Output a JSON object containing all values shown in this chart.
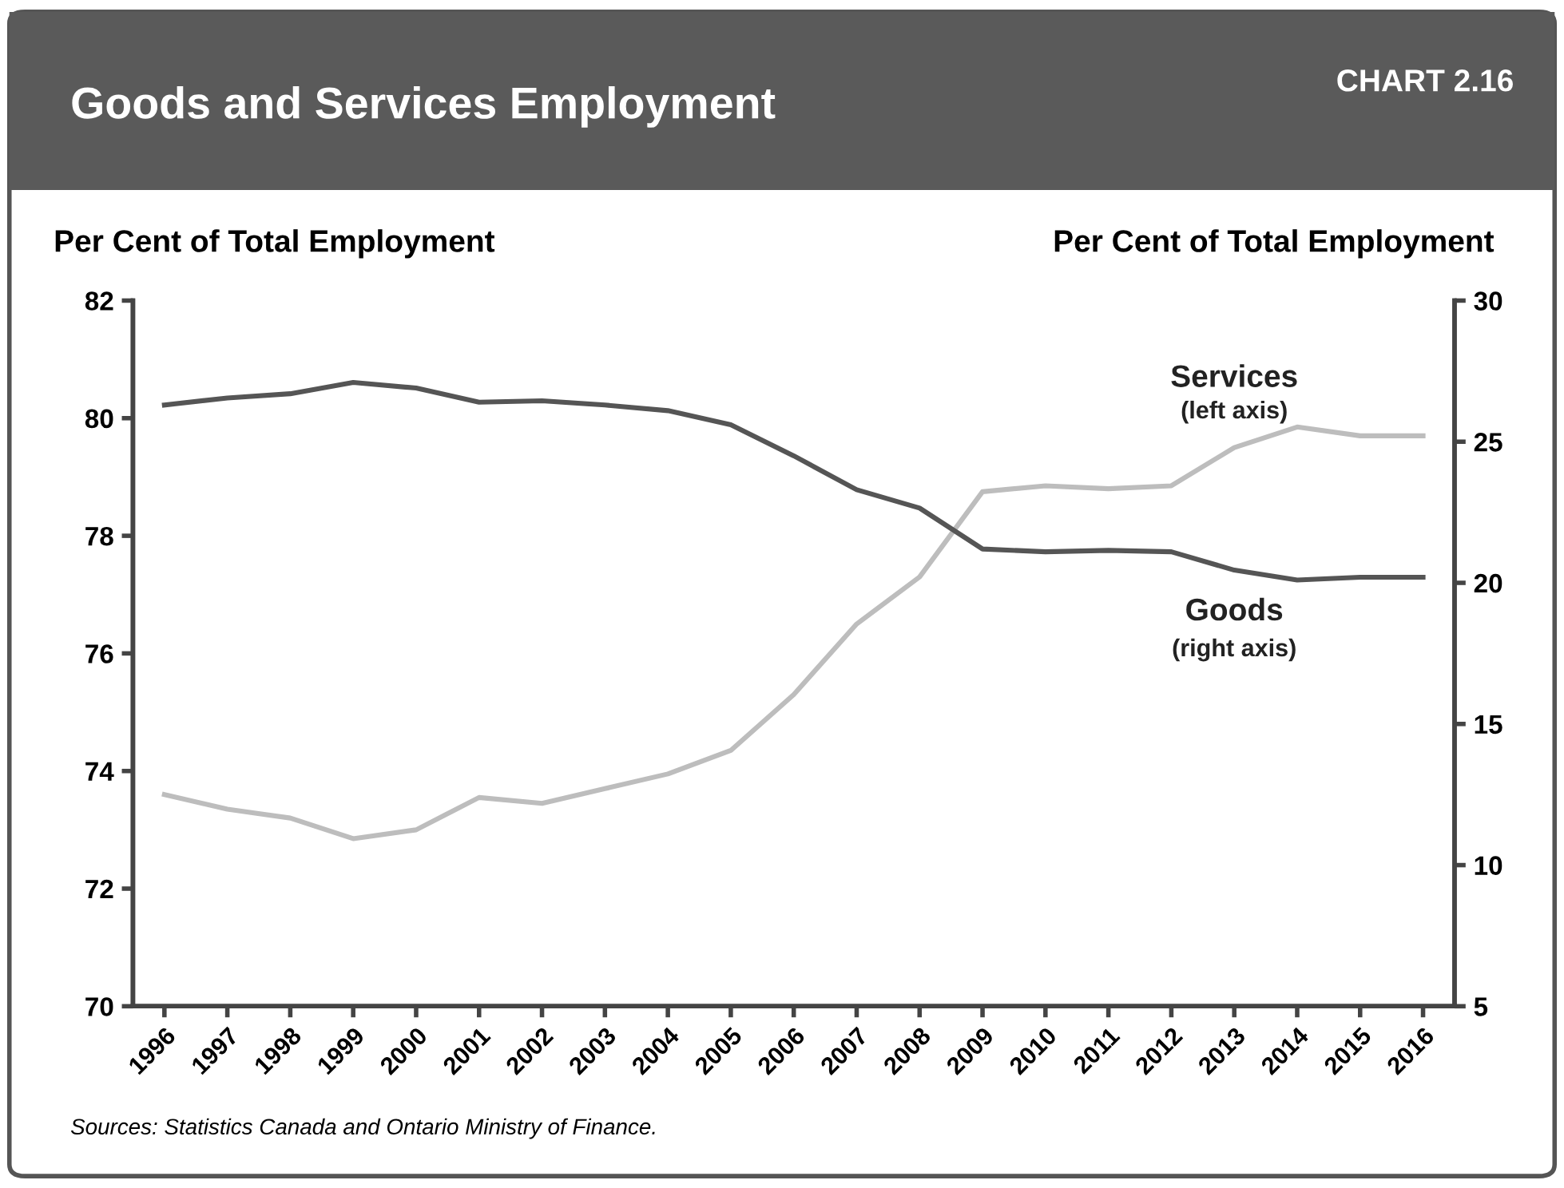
{
  "chart_data": {
    "type": "line",
    "title": "Goods and Services Employment",
    "subtitle": "CHART 2.16",
    "ylabel": "Per Cent of Total Employment",
    "y2label": "Per Cent of Total Employment",
    "categories": [
      "1996",
      "1997",
      "1998",
      "1999",
      "2000",
      "2001",
      "2002",
      "2003",
      "2004",
      "2005",
      "2006",
      "2007",
      "2008",
      "2009",
      "2010",
      "2011",
      "2012",
      "2013",
      "2014",
      "2015",
      "2016"
    ],
    "series": [
      {
        "name": "Services",
        "color": "#bdbdbd",
        "values": [
          73.6,
          73.35,
          73.2,
          72.85,
          73.0,
          73.55,
          73.45,
          73.7,
          73.95,
          74.35,
          75.3,
          76.5,
          77.3,
          78.75,
          78.85,
          78.8,
          78.85,
          79.5,
          79.85,
          79.7,
          79.7
        ]
      },
      {
        "name": "Goods",
        "color": "#555555",
        "axis": "y2",
        "values": [
          26.3,
          26.55,
          26.7,
          27.1,
          26.9,
          26.4,
          26.45,
          26.3,
          26.1,
          25.6,
          24.5,
          23.3,
          22.65,
          21.2,
          21.1,
          21.15,
          21.1,
          20.45,
          20.1,
          20.2,
          20.2
        ]
      }
    ],
    "ylim": [
      70,
      82
    ],
    "yticks": [
      70,
      72,
      74,
      76,
      78,
      80,
      82
    ],
    "y2lim": [
      5,
      30
    ],
    "y2ticks": [
      5,
      10,
      15,
      20,
      25,
      30
    ],
    "annotations": [
      "(left axis)",
      "(right axis)",
      "Sources: Statistics Canada and Ontario Ministry of Finance."
    ],
    "grid": false,
    "legend": false,
    "marker": "none",
    "line_style": "solid"
  }
}
